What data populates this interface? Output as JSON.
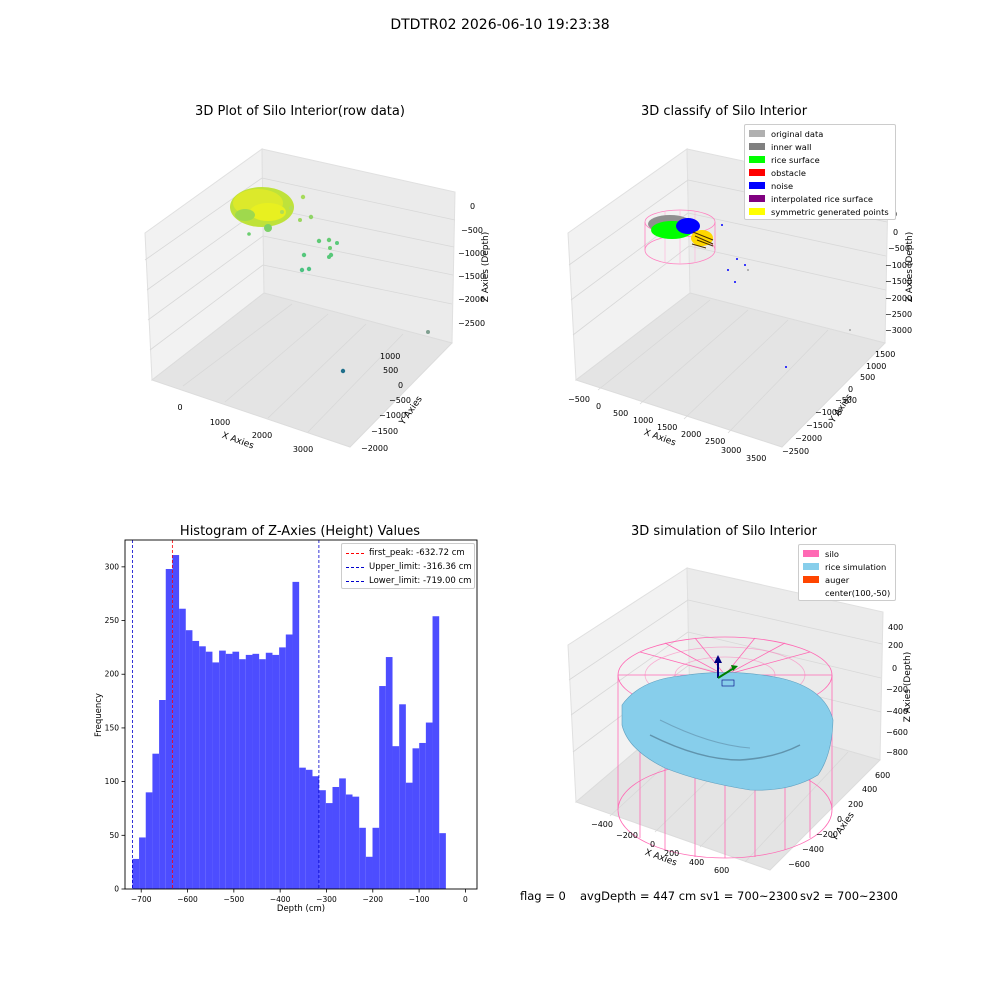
{
  "figure_title": "DTDTR02 2026-06-10 19:23:38",
  "colors": {
    "bar": "#4d4dff",
    "first_peak": "#ff0000",
    "limit": "#0000cc",
    "silo": "#ff69b4",
    "rice_simulation": "#87ceeb",
    "auger": "#ff4500",
    "pane": "#f2f2f2",
    "grid": "#d9d9d9"
  },
  "panels": {
    "raw": {
      "title": "3D Plot of Silo Interior(row data)",
      "xlabel": "X Axies",
      "ylabel": "Y Axies",
      "zlabel": "Z Axies (Depth)",
      "xticks": [
        "0",
        "1000",
        "2000",
        "3000"
      ],
      "yticks": [
        "1000",
        "500",
        "0",
        "−500",
        "−1000",
        "−1500",
        "−2000"
      ],
      "zticks": [
        "0",
        "−500",
        "−1000",
        "−1500",
        "−2000",
        "−2500"
      ]
    },
    "classify": {
      "title": "3D classify of Silo Interior",
      "xlabel": "X Axies",
      "ylabel": "Y Axies",
      "zlabel": "Z Axies (Depth)",
      "xticks": [
        "−500",
        "0",
        "500",
        "1000",
        "1500",
        "2000",
        "2500",
        "3000",
        "3500"
      ],
      "yticks": [
        "1500",
        "1000",
        "500",
        "0",
        "−500",
        "−1000",
        "−1500",
        "−2000",
        "−2500"
      ],
      "zticks": [
        "0",
        "−500",
        "−1000",
        "−1500",
        "−2000",
        "−2500",
        "−3000"
      ],
      "legend": [
        {
          "label": "original data",
          "color": "#b0b0b0"
        },
        {
          "label": "inner wall",
          "color": "#808080"
        },
        {
          "label": "rice surface",
          "color": "#00ff00"
        },
        {
          "label": "obstacle",
          "color": "#ff0000"
        },
        {
          "label": "noise",
          "color": "#0000ff"
        },
        {
          "label": "interpolated rice surface",
          "color": "#800080"
        },
        {
          "label": "symmetric generated points",
          "color": "#ffff00"
        }
      ]
    },
    "simulation": {
      "title": "3D simulation of Silo Interior",
      "xlabel": "X Axies",
      "ylabel": "Y Axies",
      "zlabel": "Z Axies (Depth)",
      "xticks": [
        "−400",
        "−200",
        "0",
        "200",
        "400",
        "600"
      ],
      "yticks": [
        "600",
        "400",
        "200",
        "0",
        "−200",
        "−400",
        "−600"
      ],
      "zticks": [
        "400",
        "200",
        "0",
        "−200",
        "−400",
        "−600",
        "−800"
      ],
      "legend": [
        {
          "label": "silo",
          "color": "#ff69b4"
        },
        {
          "label": "rice simulation",
          "color": "#87ceeb"
        },
        {
          "label": "auger",
          "color": "#ff4500"
        },
        {
          "label": "center(100,-50)",
          "color": ""
        }
      ]
    }
  },
  "chart_data": {
    "type": "bar",
    "title": "Histogram of Z-Axies (Height) Values",
    "xlabel": "Depth (cm)",
    "ylabel": "Frequency",
    "xlim": [
      -735,
      25
    ],
    "ylim": [
      0,
      325
    ],
    "xticks": [
      -700,
      -600,
      -500,
      -400,
      -300,
      -200,
      -100,
      0
    ],
    "yticks": [
      0,
      50,
      100,
      150,
      200,
      250,
      300
    ],
    "bin_start": -719,
    "bin_width": 14.4,
    "values": [
      28,
      48,
      90,
      126,
      176,
      298,
      311,
      261,
      241,
      231,
      226,
      221,
      211,
      222,
      219,
      221,
      214,
      218,
      219,
      214,
      220,
      218,
      225,
      237,
      286,
      113,
      111,
      105,
      92,
      80,
      95,
      103,
      88,
      86,
      57,
      30,
      57,
      189,
      216,
      133,
      172,
      99,
      131,
      136,
      155,
      254,
      52
    ],
    "reference_lines": [
      {
        "name": "first_peak",
        "x": -632.72,
        "label": "first_peak: -632.72 cm",
        "style": "dashed",
        "color": "#ff0000"
      },
      {
        "name": "upper_limit",
        "x": -316.36,
        "label": "Upper_limit: -316.36 cm",
        "style": "dashed",
        "color": "#0000cc"
      },
      {
        "name": "lower_limit",
        "x": -719.0,
        "label": "Lower_limit: -719.00 cm",
        "style": "dashed",
        "color": "#0000cc"
      }
    ],
    "legend_position": "top-right",
    "grid": false
  },
  "footer": {
    "flag": "flag = 0",
    "avg_depth": "avgDepth = 447 cm",
    "sv1": "sv1 = 700~2300",
    "sv2": "sv2 = 700~2300"
  }
}
